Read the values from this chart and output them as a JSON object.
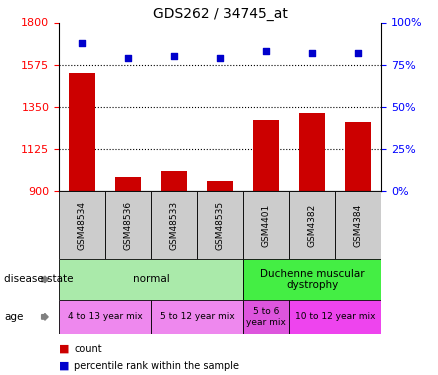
{
  "title": "GDS262 / 34745_at",
  "samples": [
    "GSM48534",
    "GSM48536",
    "GSM48533",
    "GSM48535",
    "GSM4401",
    "GSM4382",
    "GSM4384"
  ],
  "counts": [
    1530,
    975,
    1010,
    955,
    1280,
    1320,
    1270
  ],
  "percentiles": [
    88,
    79,
    80,
    79,
    83,
    82,
    82
  ],
  "ylim_left": [
    900,
    1800
  ],
  "ylim_right": [
    0,
    100
  ],
  "yticks_left": [
    900,
    1125,
    1350,
    1575,
    1800
  ],
  "yticks_right": [
    0,
    25,
    50,
    75,
    100
  ],
  "bar_color": "#cc0000",
  "dot_color": "#0000cc",
  "disease_state_groups": [
    {
      "label": "normal",
      "start": 0,
      "end": 4,
      "color": "#aaeaaa"
    },
    {
      "label": "Duchenne muscular\ndystrophy",
      "start": 4,
      "end": 7,
      "color": "#44ee44"
    }
  ],
  "age_groups": [
    {
      "label": "4 to 13 year mix",
      "start": 0,
      "end": 2,
      "color": "#ee88ee"
    },
    {
      "label": "5 to 12 year mix",
      "start": 2,
      "end": 4,
      "color": "#ee88ee"
    },
    {
      "label": "5 to 6\nyear mix",
      "start": 4,
      "end": 5,
      "color": "#dd55dd"
    },
    {
      "label": "10 to 12 year mix",
      "start": 5,
      "end": 7,
      "color": "#ee44ee"
    }
  ],
  "sample_box_color": "#cccccc",
  "legend_items": [
    {
      "label": "count",
      "color": "#cc0000"
    },
    {
      "label": "percentile rank within the sample",
      "color": "#0000cc"
    }
  ]
}
